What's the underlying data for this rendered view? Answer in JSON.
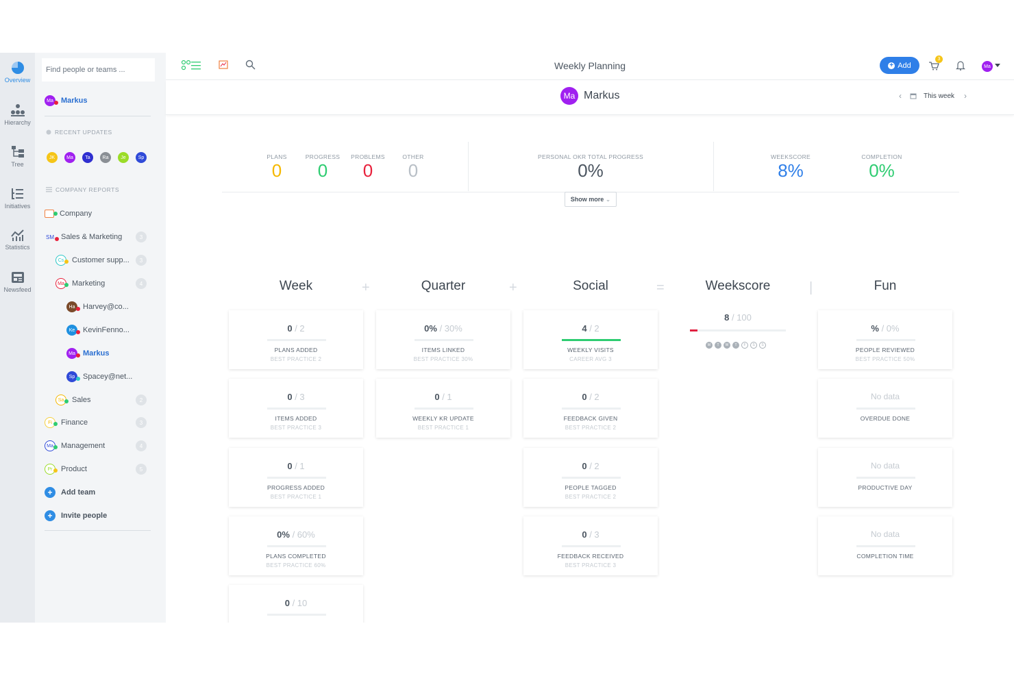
{
  "rail": [
    {
      "label": "Overview",
      "icon": "overview-icon"
    },
    {
      "label": "Hierarchy",
      "icon": "hierarchy-icon"
    },
    {
      "label": "Tree",
      "icon": "tree-icon"
    },
    {
      "label": "Initiatives",
      "icon": "initiatives-icon"
    },
    {
      "label": "Statistics",
      "icon": "statistics-icon"
    },
    {
      "label": "Newsfeed",
      "icon": "newsfeed-icon"
    }
  ],
  "panel": {
    "search_placeholder": "Find people or teams ...",
    "current_user": {
      "initials": "Ma",
      "name": "Markus"
    },
    "recent_title": "RECENT UPDATES",
    "recent": [
      "JK",
      "Ma",
      "Ta",
      "Ra",
      "Je",
      "Sp"
    ],
    "reports_title": "COMPANY REPORTS",
    "teams": [
      {
        "initials": "",
        "name": "Company",
        "count": ""
      },
      {
        "initials": "SM",
        "name": "Sales & Marketing",
        "count": "3"
      },
      {
        "initials": "Cs",
        "name": "Customer supp...",
        "count": "3"
      },
      {
        "initials": "Ma",
        "name": "Marketing",
        "count": "4"
      },
      {
        "initials": "Ha",
        "name": "Harvey@co...",
        "count": ""
      },
      {
        "initials": "Ke",
        "name": "KevinFenno...",
        "count": ""
      },
      {
        "initials": "Ma",
        "name": "Markus",
        "count": ""
      },
      {
        "initials": "Sp",
        "name": "Spacey@net...",
        "count": ""
      },
      {
        "initials": "Sa",
        "name": "Sales",
        "count": "2"
      },
      {
        "initials": "Fi",
        "name": "Finance",
        "count": "3"
      },
      {
        "initials": "Ma",
        "name": "Management",
        "count": "4"
      },
      {
        "initials": "Pr",
        "name": "Product",
        "count": "5"
      }
    ],
    "add_team": "Add team",
    "invite_people": "Invite people"
  },
  "topbar": {
    "title": "Weekly Planning",
    "add_label": "Add",
    "cart_badge": "3",
    "avatar_initials": "Ma"
  },
  "subhead": {
    "user_initials": "Ma",
    "user_name": "Markus",
    "period": "This week"
  },
  "stats": {
    "plans": {
      "label": "PLANS",
      "value": "0"
    },
    "progress": {
      "label": "PROGRESS",
      "value": "0"
    },
    "problems": {
      "label": "PROBLEMS",
      "value": "0"
    },
    "other": {
      "label": "OTHER",
      "value": "0"
    },
    "okr": {
      "label": "PERSONAL OKR TOTAL PROGRESS",
      "value": "0%"
    },
    "weekscore": {
      "label": "WEEKSCORE",
      "value": "8%"
    },
    "completion": {
      "label": "COMPLETION",
      "value": "0%"
    },
    "show_more": "Show more"
  },
  "columns": {
    "week": "Week",
    "quarter": "Quarter",
    "social": "Social",
    "weekscore": "Weekscore",
    "fun": "Fun",
    "op_plus": "+",
    "op_eq": "=",
    "op_bar": "|"
  },
  "cards": {
    "week": [
      {
        "value": "0",
        "target": "/ 2",
        "label": "PLANS ADDED",
        "sub": "BEST PRACTICE 2",
        "fill": 0
      },
      {
        "value": "0",
        "target": "/ 3",
        "label": "ITEMS ADDED",
        "sub": "BEST PRACTICE 3",
        "fill": 0
      },
      {
        "value": "0",
        "target": "/ 1",
        "label": "PROGRESS ADDED",
        "sub": "BEST PRACTICE 1",
        "fill": 0
      },
      {
        "value": "0%",
        "target": "/ 60%",
        "label": "PLANS COMPLETED",
        "sub": "BEST PRACTICE 60%",
        "fill": 0
      },
      {
        "value": "0",
        "target": "/ 10",
        "label": "",
        "sub": "",
        "fill": 0
      }
    ],
    "quarter": [
      {
        "value": "0%",
        "target": "/ 30%",
        "label": "ITEMS LINKED",
        "sub": "BEST PRACTICE 30%",
        "fill": 0
      },
      {
        "value": "0",
        "target": "/ 1",
        "label": "WEEKLY KR UPDATE",
        "sub": "BEST PRACTICE 1",
        "fill": 0
      }
    ],
    "social": [
      {
        "value": "4",
        "target": "/ 2",
        "label": "WEEKLY VISITS",
        "sub": "CAREER AVG 3",
        "fill": 1
      },
      {
        "value": "0",
        "target": "/ 2",
        "label": "FEEDBACK GIVEN",
        "sub": "BEST PRACTICE 2",
        "fill": 0
      },
      {
        "value": "0",
        "target": "/ 2",
        "label": "PEOPLE TAGGED",
        "sub": "BEST PRACTICE 2",
        "fill": 0
      },
      {
        "value": "0",
        "target": "/ 3",
        "label": "FEEDBACK RECEIVED",
        "sub": "BEST PRACTICE 3",
        "fill": 0
      }
    ],
    "fun": [
      {
        "value": "%",
        "target": "/ 0%",
        "label": "PEOPLE REVIEWED",
        "sub": "BEST PRACTICE 50%",
        "fill": 0
      },
      {
        "value": "No data",
        "target": "",
        "label": "OVERDUE DONE",
        "sub": "",
        "fill": 0
      },
      {
        "value": "No data",
        "target": "",
        "label": "PRODUCTIVE DAY",
        "sub": "",
        "fill": 0
      },
      {
        "value": "No data",
        "target": "",
        "label": "COMPLETION TIME",
        "sub": "",
        "fill": 0
      }
    ]
  },
  "weekscore": {
    "value": "8",
    "target": "/ 100",
    "fill": 0.08,
    "days": [
      {
        "letter": "M",
        "done": true
      },
      {
        "letter": "T",
        "done": true
      },
      {
        "letter": "W",
        "done": true
      },
      {
        "letter": "T",
        "done": true
      },
      {
        "letter": "F",
        "done": false
      },
      {
        "letter": "S",
        "done": false
      },
      {
        "letter": "S",
        "done": false
      }
    ]
  },
  "colors": {
    "accent": "#2f7fe8",
    "plans": "#f5b800",
    "progress": "#2ecc71",
    "problems": "#e8213c",
    "other": "#b8bfc6",
    "weekscore": "#2f7fe8",
    "completion": "#2ecc71"
  }
}
